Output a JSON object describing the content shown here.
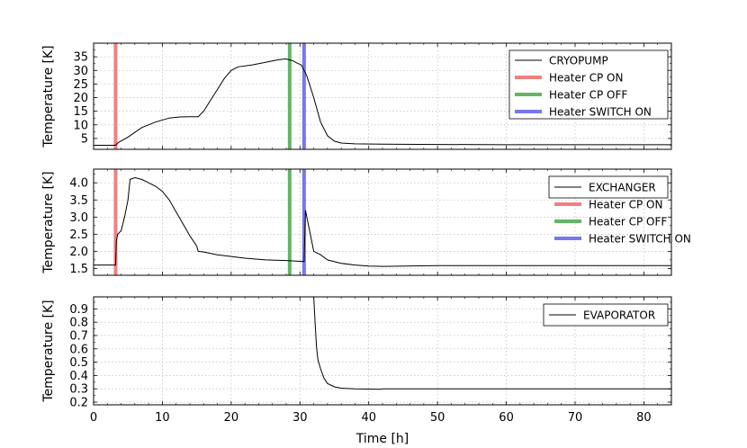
{
  "chart_data": [
    {
      "type": "line",
      "ylabel": "Temperature [K]",
      "xlim": [
        0,
        84
      ],
      "ylim": [
        1,
        40
      ],
      "yticks": [
        5,
        10,
        15,
        20,
        25,
        30,
        35
      ],
      "grid": true,
      "legend": "top-right",
      "series": [
        {
          "name": "CRYOPUMP",
          "color": "#000000",
          "x": [
            0,
            3.2,
            3.6,
            5,
            7,
            9,
            11,
            12.5,
            14,
            15.2,
            16,
            17,
            18,
            19,
            20,
            21,
            23,
            25,
            26,
            27,
            28,
            29,
            29.5,
            30.2,
            31,
            32,
            33,
            34,
            35,
            36,
            38,
            42,
            50,
            60,
            70,
            84
          ],
          "y": [
            2.5,
            2.5,
            3.5,
            5.5,
            9,
            11,
            12.5,
            12.9,
            13,
            13,
            15,
            19,
            23,
            27,
            30,
            31.3,
            32,
            33,
            33.5,
            34,
            34.2,
            33.5,
            32.8,
            32,
            28,
            20,
            11,
            6,
            4,
            3.3,
            3,
            2.9,
            2.8,
            2.7,
            2.7,
            2.7
          ]
        }
      ],
      "vlines": [
        {
          "name": "Heater CP ON",
          "x": 3.2,
          "color": "#f08080"
        },
        {
          "name": "Heater CP OFF",
          "x": 28.5,
          "color": "#66b366"
        },
        {
          "name": "Heater SWITCH ON",
          "x": 30.6,
          "color": "#7777ee"
        }
      ]
    },
    {
      "type": "line",
      "ylabel": "Temperature [K]",
      "xlim": [
        0,
        84
      ],
      "ylim": [
        1.3,
        4.4
      ],
      "yticks": [
        "1.5",
        "2.0",
        "2.5",
        "3.0",
        "3.5",
        "4.0"
      ],
      "grid": true,
      "legend": "top-right",
      "series": [
        {
          "name": "EXCHANGER",
          "color": "#000000",
          "x": [
            0,
            3.2,
            3.3,
            3.5,
            4,
            4.5,
            5,
            5.3,
            6,
            7,
            8,
            9,
            10,
            11,
            12,
            13,
            14,
            15,
            15.2,
            16,
            18,
            20,
            22,
            25,
            28,
            29,
            30.6,
            30.8,
            31.5,
            32,
            33,
            34,
            36,
            38,
            40,
            42,
            50,
            60,
            70,
            84
          ],
          "y": [
            1.6,
            1.6,
            2.3,
            2.5,
            2.6,
            3.0,
            3.5,
            4.1,
            4.15,
            4.1,
            4.0,
            3.9,
            3.75,
            3.5,
            3.15,
            2.8,
            2.45,
            2.15,
            2.0,
            1.98,
            1.9,
            1.85,
            1.8,
            1.75,
            1.73,
            1.72,
            1.7,
            3.2,
            2.5,
            2.0,
            1.9,
            1.75,
            1.65,
            1.6,
            1.57,
            1.56,
            1.58,
            1.58,
            1.58,
            1.58
          ]
        }
      ],
      "vlines": [
        {
          "name": "Heater CP ON",
          "x": 3.2,
          "color": "#f08080"
        },
        {
          "name": "Heater CP OFF",
          "x": 28.5,
          "color": "#66b366"
        },
        {
          "name": "Heater SWITCH ON",
          "x": 30.6,
          "color": "#7777ee"
        }
      ]
    },
    {
      "type": "line",
      "xlabel": "Time [h]",
      "ylabel": "Temperature [K]",
      "xlim": [
        0,
        84
      ],
      "ylim": [
        0.18,
        0.99
      ],
      "xticks": [
        0,
        10,
        20,
        30,
        40,
        50,
        60,
        70,
        80
      ],
      "yticks": [
        "0.2",
        "0.3",
        "0.4",
        "0.5",
        "0.6",
        "0.7",
        "0.8",
        "0.9"
      ],
      "grid": true,
      "legend": "top-right",
      "series": [
        {
          "name": "EVAPORATOR",
          "color": "#000000",
          "x": [
            32.0,
            32.2,
            32.4,
            32.6,
            33,
            33.5,
            34,
            35,
            36,
            38,
            40,
            41.8,
            42,
            50,
            60,
            69.5,
            70,
            72,
            72.5,
            84
          ],
          "y": [
            0.99,
            0.8,
            0.62,
            0.52,
            0.45,
            0.38,
            0.34,
            0.315,
            0.305,
            0.3,
            0.298,
            0.297,
            0.3,
            0.3,
            0.3,
            0.3,
            0.3,
            0.3,
            0.3,
            0.3
          ]
        }
      ]
    }
  ]
}
